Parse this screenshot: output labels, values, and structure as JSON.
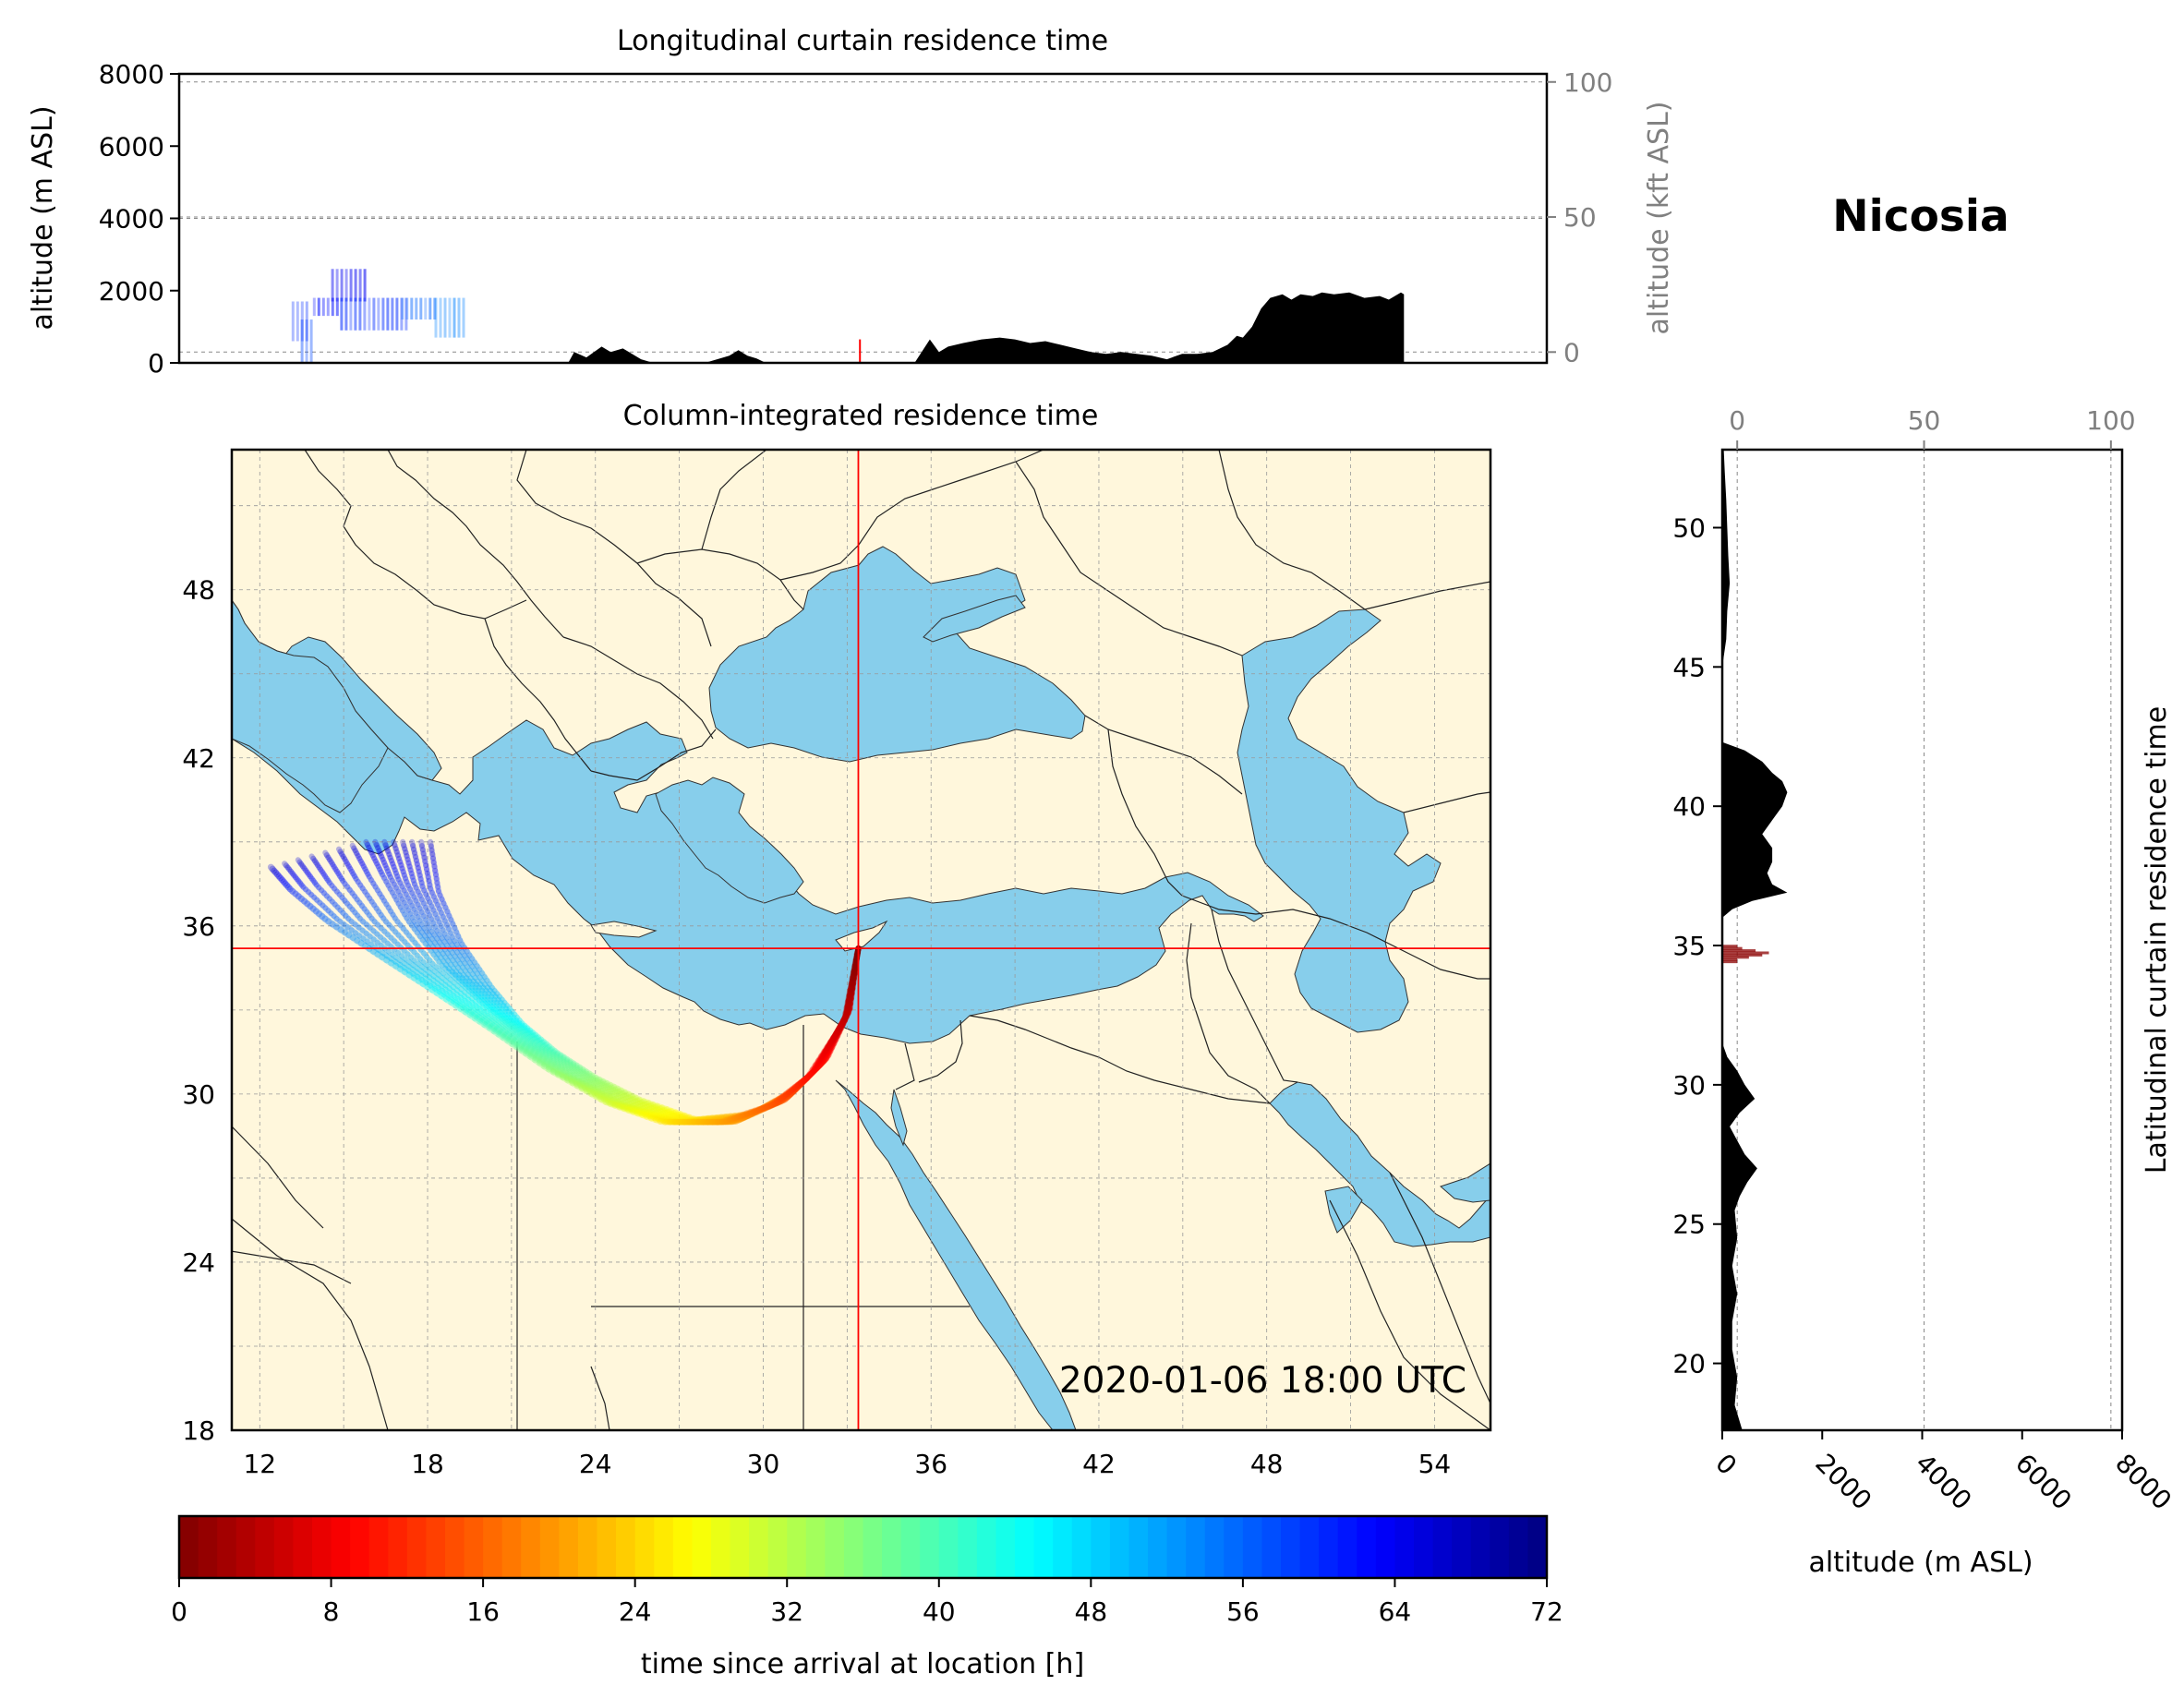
{
  "location_title": "Nicosia",
  "timestamp": "2020-01-06 18:00 UTC",
  "colors": {
    "land": "#fff7dc",
    "sea": "#87ceeb",
    "crosshair": "#ff0000",
    "terrain": "#000000",
    "secondary_axis": "#808080"
  },
  "chart_data": [
    {
      "id": "longitudinal",
      "type": "area",
      "title": "Longitudinal curtain residence time",
      "ylabel": "altitude (m ASL)",
      "ylabel_right": "altitude (kft ASL)",
      "ylim": [
        0,
        8000
      ],
      "yticks": [
        "0",
        "2000",
        "4000",
        "6000",
        "8000"
      ],
      "ylim_right_kft": [
        -4,
        103
      ],
      "yticks_right": [
        "0",
        "50",
        "100"
      ],
      "xlim": [
        11,
        56
      ],
      "grid": true,
      "terrain_profile": {
        "x_lon": [
          11,
          23.8,
          24,
          24.4,
          24.9,
          25.2,
          25.6,
          25.9,
          26.2,
          26.6,
          26.9,
          27.3,
          28.3,
          29.1,
          29.4,
          29.7,
          30.0,
          30.3,
          32.0,
          35.2,
          35.7,
          36.0,
          36.3,
          36.8,
          37.4,
          38.0,
          38.5,
          39.0,
          39.5,
          40.0,
          40.5,
          41.0,
          41.5,
          42.0,
          43.0,
          43.5,
          44.0,
          44.5,
          45.0,
          45.5,
          45.8,
          46.0,
          46.3,
          46.6,
          46.9,
          47.3,
          47.6,
          47.9,
          48.3,
          48.6,
          49.0,
          49.5,
          50.0,
          50.5,
          50.8,
          51.2,
          51.3
        ],
        "y_m": [
          0,
          0,
          300,
          150,
          450,
          300,
          400,
          250,
          100,
          0,
          0,
          0,
          0,
          200,
          350,
          200,
          120,
          0,
          0,
          0,
          650,
          300,
          450,
          550,
          650,
          700,
          650,
          550,
          600,
          500,
          400,
          300,
          250,
          300,
          200,
          100,
          250,
          250,
          300,
          500,
          750,
          700,
          1000,
          1500,
          1800,
          1900,
          1750,
          1900,
          1850,
          1950,
          1900,
          1950,
          1800,
          1850,
          1750,
          1950,
          1900
        ]
      },
      "plume": [
        {
          "lon": [
            15.0,
            15.4
          ],
          "alt_m": [
            0,
            1200
          ],
          "age_h": 58
        },
        {
          "lon": [
            14.7,
            15.3
          ],
          "alt_m": [
            600,
            1700
          ],
          "age_h": 60
        },
        {
          "lon": [
            15.4,
            16.3
          ],
          "alt_m": [
            1300,
            1800
          ],
          "age_h": 62
        },
        {
          "lon": [
            16.0,
            17.1
          ],
          "alt_m": [
            1700,
            2600
          ],
          "age_h": 64
        },
        {
          "lon": [
            16.3,
            18.5
          ],
          "alt_m": [
            900,
            1800
          ],
          "age_h": 60
        },
        {
          "lon": [
            18.3,
            19.5
          ],
          "alt_m": [
            1200,
            1800
          ],
          "age_h": 56
        },
        {
          "lon": [
            19.4,
            20.4
          ],
          "alt_m": [
            700,
            1800
          ],
          "age_h": 54
        }
      ],
      "arrival_marker": {
        "lon": 33.4,
        "alt_m": 400
      }
    },
    {
      "id": "map",
      "type": "heatmap",
      "title": "Column-integrated residence time",
      "xlim": [
        11,
        56
      ],
      "ylim": [
        18,
        53
      ],
      "xticks": [
        "12",
        "18",
        "24",
        "30",
        "36",
        "42",
        "48",
        "54"
      ],
      "yticks": [
        "18",
        "24",
        "30",
        "36",
        "42",
        "48"
      ],
      "grid": true,
      "release_point": {
        "lon": 33.4,
        "lat": 35.2
      },
      "trajectory_bundle": [
        {
          "lon": [
            33.4,
            33.1,
            32.3,
            31.2,
            29.6,
            27.6,
            25.6,
            24.0,
            22.6,
            21.4,
            20.3,
            19.2,
            18.4,
            18.1
          ],
          "lat": [
            35.2,
            33.0,
            31.3,
            30.2,
            29.3,
            29.1,
            29.8,
            30.6,
            31.5,
            32.5,
            33.8,
            35.4,
            37.2,
            39.0
          ]
        },
        {
          "lon": [
            33.4,
            33.0,
            32.0,
            30.8,
            29.0,
            27.1,
            25.1,
            23.4,
            21.6,
            20.0,
            18.5,
            17.3,
            16.4,
            15.8
          ],
          "lat": [
            35.2,
            32.9,
            31.0,
            29.8,
            29.0,
            29.0,
            29.6,
            30.5,
            31.8,
            33.2,
            34.6,
            36.2,
            37.8,
            39.0
          ]
        },
        {
          "lon": [
            33.4,
            32.9,
            31.6,
            30.3,
            28.5,
            26.4,
            24.4,
            22.3,
            20.3,
            18.2,
            16.2,
            14.4,
            13.1,
            12.4
          ],
          "lat": [
            35.2,
            32.6,
            30.6,
            29.6,
            29.0,
            29.0,
            29.7,
            30.9,
            32.3,
            33.7,
            35.0,
            36.2,
            37.3,
            38.1
          ]
        }
      ]
    },
    {
      "id": "latitudinal",
      "type": "area",
      "title": "Latitudinal curtain residence time",
      "xlabel": "altitude (m ASL)",
      "xlim": [
        0,
        8000
      ],
      "xticks": [
        "0",
        "2000",
        "4000",
        "6000",
        "8000"
      ],
      "xticks_top": [
        "0",
        "50",
        "100"
      ],
      "ylim": [
        17.6,
        52.8
      ],
      "yticks": [
        "20",
        "25",
        "30",
        "35",
        "40",
        "45",
        "50"
      ],
      "grid": true,
      "terrain_profile": {
        "lat": [
          17.6,
          18.5,
          19.5,
          20.5,
          21.5,
          22.5,
          23.5,
          24.5,
          25.5,
          26.0,
          26.5,
          27.0,
          27.5,
          28.0,
          28.5,
          29.0,
          29.5,
          30.0,
          30.5,
          31.0,
          31.5,
          32.0,
          33.0,
          34.0,
          35.0,
          36.0,
          36.3,
          36.6,
          36.9,
          37.2,
          37.6,
          38.0,
          38.5,
          39.0,
          39.5,
          40.0,
          40.5,
          40.9,
          41.2,
          41.6,
          42.0,
          42.3,
          43.0,
          44.0,
          45.0,
          46.0,
          47.0,
          48.0,
          49.0,
          50.0,
          51.0,
          52.0,
          52.8
        ],
        "alt_m": [
          400,
          250,
          300,
          200,
          200,
          300,
          200,
          300,
          250,
          350,
          500,
          700,
          450,
          300,
          150,
          350,
          650,
          450,
          300,
          100,
          0,
          0,
          0,
          0,
          0,
          0,
          200,
          600,
          1300,
          1000,
          900,
          1000,
          1000,
          800,
          1000,
          1200,
          1300,
          1200,
          1000,
          800,
          450,
          0,
          0,
          0,
          0,
          80,
          100,
          150,
          120,
          100,
          80,
          50,
          30
        ]
      },
      "plume": {
        "lat": [
          34.4,
          35.0
        ],
        "alt_m": [
          0,
          1000
        ]
      }
    },
    {
      "id": "colorbar",
      "type": "heatmap",
      "xlabel": "time since arrival at location [h]",
      "range": [
        0,
        72
      ],
      "ticks": [
        "0",
        "8",
        "16",
        "24",
        "32",
        "40",
        "48",
        "56",
        "64",
        "72"
      ],
      "colormap": "jet_r",
      "levels": 72
    }
  ]
}
